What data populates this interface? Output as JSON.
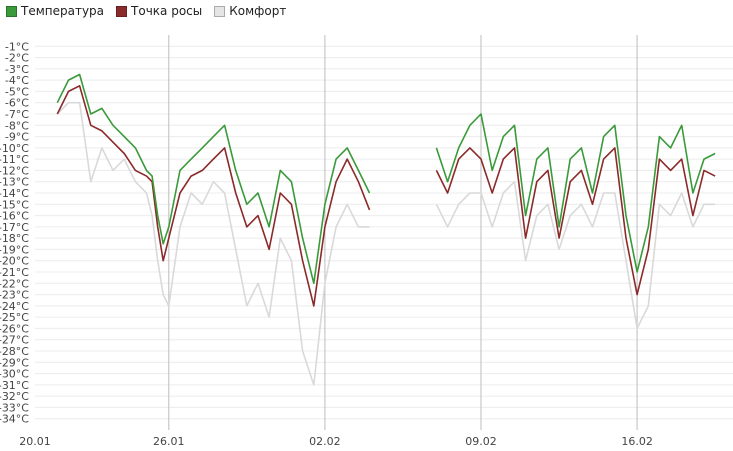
{
  "legend": [
    {
      "label": "Температура",
      "color": "#3a9a3a"
    },
    {
      "label": "Точка росы",
      "color": "#8b2a2a"
    },
    {
      "label": "Комфорт",
      "color": "#d9d9d9"
    }
  ],
  "chart_data": {
    "type": "line",
    "title": "",
    "xlabel": "",
    "ylabel": "",
    "x_ticks": [
      "20.01",
      "26.01",
      "02.02",
      "09.02",
      "16.02"
    ],
    "xlim": [
      "2024-01-20",
      "2024-02-20"
    ],
    "y_ticks": [
      "-1°C",
      "-2°C",
      "-3°C",
      "-4°C",
      "-5°C",
      "-6°C",
      "-7°C",
      "-8°C",
      "-9°C",
      "-10°C",
      "-11°C",
      "-12°C",
      "-13°C",
      "-14°C",
      "-15°C",
      "-16°C",
      "-17°C",
      "-18°C",
      "-19°C",
      "-20°C",
      "-21°C",
      "-22°C",
      "-23°C",
      "-24°C",
      "-25°C",
      "-26°C",
      "-27°C",
      "-28°C",
      "-29°C",
      "-30°C",
      "-31°C",
      "-32°C",
      "-33°C",
      "-34°C"
    ],
    "ylim": [
      -35,
      0
    ],
    "grid": true,
    "legend_position": "top-left",
    "series": [
      {
        "name": "Температура",
        "color": "#3a9a3a",
        "x": [
          "2024-01-21",
          "2024-01-21T12:00",
          "2024-01-22",
          "2024-01-22T12:00",
          "2024-01-23",
          "2024-01-23T12:00",
          "2024-01-24",
          "2024-01-24T12:00",
          "2024-01-25",
          "2024-01-25T06:00",
          "2024-01-25T12:00",
          "2024-01-25T18:00",
          "2024-01-26",
          "2024-01-26T12:00",
          "2024-01-27",
          "2024-01-27T12:00",
          "2024-01-28",
          "2024-01-28T12:00",
          "2024-01-29",
          "2024-01-29T12:00",
          "2024-01-30",
          "2024-01-30T12:00",
          "2024-01-31",
          "2024-01-31T12:00",
          "2024-02-01",
          "2024-02-01T12:00",
          "2024-02-02",
          "2024-02-02T12:00",
          "2024-02-03",
          "2024-02-03T12:00",
          "2024-02-04",
          null,
          "2024-02-07",
          "2024-02-07T12:00",
          "2024-02-08",
          "2024-02-08T12:00",
          "2024-02-09",
          "2024-02-09T12:00",
          "2024-02-10",
          "2024-02-10T12:00",
          "2024-02-11",
          "2024-02-11T12:00",
          "2024-02-12",
          "2024-02-12T12:00",
          "2024-02-13",
          "2024-02-13T12:00",
          "2024-02-14",
          "2024-02-14T12:00",
          "2024-02-15",
          "2024-02-15T12:00",
          "2024-02-16",
          "2024-02-16T12:00",
          "2024-02-17",
          "2024-02-17T12:00",
          "2024-02-18",
          "2024-02-18T12:00",
          "2024-02-19",
          "2024-02-19T12:00"
        ],
        "values": [
          -6,
          -4,
          -3.5,
          -7,
          -6.5,
          -8,
          -9,
          -10,
          -12,
          -12.5,
          -16,
          -18.5,
          -17,
          -12,
          -11,
          -10,
          -9,
          -8,
          -12,
          -15,
          -14,
          -17,
          -12,
          -13,
          -18,
          -22,
          -15,
          -11,
          -10,
          -12,
          -14,
          null,
          -10,
          -13,
          -10,
          -8,
          -7,
          -12,
          -9,
          -8,
          -16,
          -11,
          -10,
          -17,
          -11,
          -10,
          -14,
          -9,
          -8,
          -16,
          -21,
          -17,
          -9,
          -10,
          -8,
          -14,
          -11,
          -10.5
        ]
      },
      {
        "name": "Точка росы",
        "color": "#8b2a2a",
        "x": [
          "2024-01-21",
          "2024-01-21T12:00",
          "2024-01-22",
          "2024-01-22T12:00",
          "2024-01-23",
          "2024-01-23T12:00",
          "2024-01-24",
          "2024-01-24T12:00",
          "2024-01-25",
          "2024-01-25T06:00",
          "2024-01-25T12:00",
          "2024-01-25T18:00",
          "2024-01-26",
          "2024-01-26T12:00",
          "2024-01-27",
          "2024-01-27T12:00",
          "2024-01-28",
          "2024-01-28T12:00",
          "2024-01-29",
          "2024-01-29T12:00",
          "2024-01-30",
          "2024-01-30T12:00",
          "2024-01-31",
          "2024-01-31T12:00",
          "2024-02-01",
          "2024-02-01T12:00",
          "2024-02-02",
          "2024-02-02T12:00",
          "2024-02-03",
          "2024-02-03T12:00",
          "2024-02-04",
          null,
          "2024-02-07",
          "2024-02-07T12:00",
          "2024-02-08",
          "2024-02-08T12:00",
          "2024-02-09",
          "2024-02-09T12:00",
          "2024-02-10",
          "2024-02-10T12:00",
          "2024-02-11",
          "2024-02-11T12:00",
          "2024-02-12",
          "2024-02-12T12:00",
          "2024-02-13",
          "2024-02-13T12:00",
          "2024-02-14",
          "2024-02-14T12:00",
          "2024-02-15",
          "2024-02-15T12:00",
          "2024-02-16",
          "2024-02-16T12:00",
          "2024-02-17",
          "2024-02-17T12:00",
          "2024-02-18",
          "2024-02-18T12:00",
          "2024-02-19",
          "2024-02-19T12:00"
        ],
        "values": [
          -7,
          -5,
          -4.5,
          -8,
          -8.5,
          -9.5,
          -10.5,
          -12,
          -12.5,
          -13,
          -17,
          -20,
          -18,
          -14,
          -12.5,
          -12,
          -11,
          -10,
          -14,
          -17,
          -16,
          -19,
          -14,
          -15,
          -20,
          -24,
          -17,
          -13,
          -11,
          -13,
          -15.5,
          null,
          -12,
          -14,
          -11,
          -10,
          -11,
          -14,
          -11,
          -10,
          -18,
          -13,
          -12,
          -18,
          -13,
          -12,
          -15,
          -11,
          -10,
          -18,
          -23,
          -19,
          -11,
          -12,
          -11,
          -16,
          -12,
          -12.5
        ]
      },
      {
        "name": "Комфорт",
        "color": "#d9d9d9",
        "x": [
          "2024-01-21",
          "2024-01-21T12:00",
          "2024-01-22",
          "2024-01-22T12:00",
          "2024-01-23",
          "2024-01-23T12:00",
          "2024-01-24",
          "2024-01-24T12:00",
          "2024-01-25",
          "2024-01-25T06:00",
          "2024-01-25T12:00",
          "2024-01-25T18:00",
          "2024-01-26",
          "2024-01-26T12:00",
          "2024-01-27",
          "2024-01-27T12:00",
          "2024-01-28",
          "2024-01-28T12:00",
          "2024-01-29",
          "2024-01-29T12:00",
          "2024-01-30",
          "2024-01-30T12:00",
          "2024-01-31",
          "2024-01-31T12:00",
          "2024-02-01",
          "2024-02-01T12:00",
          "2024-02-02",
          "2024-02-02T12:00",
          "2024-02-03",
          "2024-02-03T12:00",
          "2024-02-04",
          null,
          "2024-02-07",
          "2024-02-07T12:00",
          "2024-02-08",
          "2024-02-08T12:00",
          "2024-02-09",
          "2024-02-09T12:00",
          "2024-02-10",
          "2024-02-10T12:00",
          "2024-02-11",
          "2024-02-11T12:00",
          "2024-02-12",
          "2024-02-12T12:00",
          "2024-02-13",
          "2024-02-13T12:00",
          "2024-02-14",
          "2024-02-14T12:00",
          "2024-02-15",
          "2024-02-15T12:00",
          "2024-02-16",
          "2024-02-16T12:00",
          "2024-02-17",
          "2024-02-17T12:00",
          "2024-02-18",
          "2024-02-18T12:00",
          "2024-02-19",
          "2024-02-19T12:00"
        ],
        "values": [
          -7,
          -6,
          -6,
          -13,
          -10,
          -12,
          -11,
          -13,
          -14,
          -16,
          -20,
          -23,
          -24,
          -17,
          -14,
          -15,
          -13,
          -14,
          -19,
          -24,
          -22,
          -25,
          -18,
          -20,
          -28,
          -31,
          -22,
          -17,
          -15,
          -17,
          -17,
          null,
          -15,
          -17,
          -15,
          -14,
          -14,
          -17,
          -14,
          -13,
          -20,
          -16,
          -15,
          -19,
          -16,
          -15,
          -17,
          -14,
          -14,
          -20,
          -26,
          -24,
          -15,
          -16,
          -14,
          -17,
          -15,
          -15
        ]
      }
    ]
  }
}
